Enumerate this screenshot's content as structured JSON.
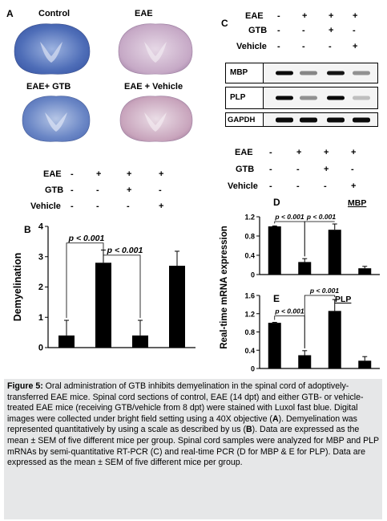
{
  "panel_a": {
    "letter": "A",
    "labels": {
      "control": "Control",
      "eae": "EAE",
      "eae_gtb": "EAE+ GTB",
      "eae_vehicle": "EAE + Vehicle"
    },
    "colors": {
      "control": "#5b78c0",
      "eae": "#c9b2cc",
      "eae_gtb": "#6f8cc7",
      "eae_vehicle": "#c7a7bd"
    }
  },
  "panel_c": {
    "letter": "C",
    "rows": [
      {
        "label": "EAE",
        "values": [
          "-",
          "+",
          "+",
          "+"
        ]
      },
      {
        "label": "GTB",
        "values": [
          "-",
          "-",
          "+",
          "-"
        ]
      },
      {
        "label": "Vehicle",
        "values": [
          "-",
          "-",
          "-",
          "+"
        ]
      }
    ],
    "bands": [
      {
        "label": "MBP",
        "intensity": [
          1.0,
          0.45,
          0.95,
          0.4
        ]
      },
      {
        "label": "PLP",
        "intensity": [
          1.0,
          0.4,
          1.0,
          0.2
        ]
      },
      {
        "label": "GAPDH",
        "intensity": [
          1.0,
          1.0,
          1.0,
          1.0
        ]
      }
    ]
  },
  "panel_b": {
    "letter": "B",
    "rows": [
      {
        "label": "EAE",
        "values": [
          "-",
          "+",
          "+",
          "+"
        ]
      },
      {
        "label": "GTB",
        "values": [
          "-",
          "-",
          "+",
          "-"
        ]
      },
      {
        "label": "Vehicle",
        "values": [
          "-",
          "-",
          "-",
          "+"
        ]
      }
    ]
  },
  "panel_de": {
    "rows": [
      {
        "label": "EAE",
        "values": [
          "-",
          "+",
          "+",
          "+"
        ]
      },
      {
        "label": "GTB",
        "values": [
          "-",
          "-",
          "+",
          "-"
        ]
      },
      {
        "label": "Vehicle",
        "values": [
          "-",
          "-",
          "-",
          "+"
        ]
      }
    ],
    "shared_ylabel": "Real-time mRNA  expression"
  },
  "chart_data": [
    {
      "id": "B",
      "type": "bar",
      "letter": "B",
      "ylabel": "Demyelination",
      "ylim": [
        0,
        4
      ],
      "yticks": [
        "0",
        "1",
        "2",
        "3",
        "4"
      ],
      "values": [
        0.4,
        2.8,
        0.4,
        2.7
      ],
      "errors": [
        0.5,
        0.42,
        0.5,
        0.48
      ],
      "annotations": [
        "p < 0.001",
        "p < 0.001"
      ]
    },
    {
      "id": "D",
      "type": "bar",
      "letter": "D",
      "title": "MBP",
      "ylim": [
        0,
        1.2
      ],
      "yticks": [
        "0",
        "0.4",
        "0.8",
        "1.2"
      ],
      "values": [
        1.0,
        0.26,
        0.93,
        0.13
      ],
      "errors": [
        0.01,
        0.07,
        0.12,
        0.04
      ],
      "annotations": [
        "p < 0.001",
        "p < 0.001"
      ]
    },
    {
      "id": "E",
      "type": "bar",
      "letter": "E",
      "title": "PLP",
      "ylim": [
        0,
        1.6
      ],
      "yticks": [
        "0",
        "0.4",
        "0.8",
        "1.2",
        "1.6"
      ],
      "values": [
        1.0,
        0.29,
        1.26,
        0.17
      ],
      "errors": [
        0.01,
        0.1,
        0.25,
        0.09
      ],
      "annotations": [
        "p < 0.001",
        "p < 0.001"
      ]
    }
  ],
  "caption": {
    "label": "Figure 5:",
    "parts": [
      " Oral administration of GTB inhibits demyelination in the spinal cord of adoptively-transferred EAE mice. Spinal cord sections of control, EAE (14 dpt) and either GTB- or vehicle-treated EAE mice (receiving GTB/vehicle from 8 dpt) were stained with Luxol fast blue. Digital images were collected under bright field setting using a 40X objective (",
      "A",
      "). Demyelination was represented quantitatively by using a scale as described by us (",
      "B",
      "). Data are expressed as the mean ± SEM of five different mice per group. Spinal cord samples were analyzed for MBP and PLP mRNAs by semi-quantitative RT-PCR (C) and real-time PCR (D for MBP & E for PLP). Data are expressed as the mean ± SEM of five different mice per group."
    ]
  }
}
